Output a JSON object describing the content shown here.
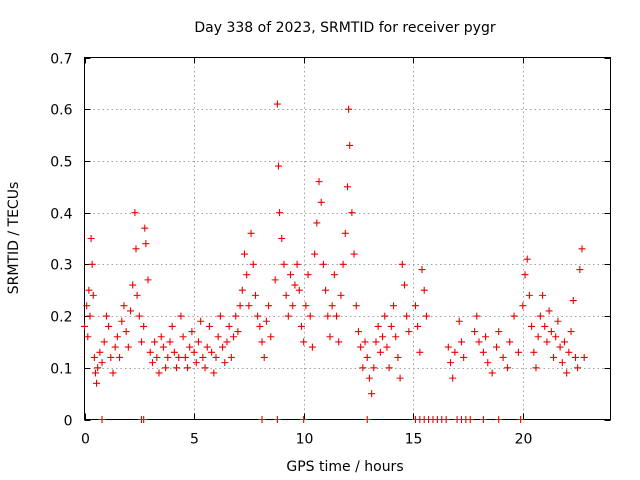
{
  "chart_data": {
    "type": "scatter",
    "title": "Day 338 of 2023, SRMTID for receiver pygr",
    "xlabel": "GPS time / hours",
    "ylabel": "SRMTID / TECUs",
    "xlim": [
      0,
      24
    ],
    "ylim": [
      0,
      0.7
    ],
    "xticks": [
      0,
      5,
      10,
      15,
      20
    ],
    "yticks": [
      0,
      0.1,
      0.2,
      0.3,
      0.4,
      0.5,
      0.6,
      0.7
    ],
    "xtick_labels": [
      "0",
      "5",
      "10",
      "15",
      "20"
    ],
    "ytick_labels": [
      "0",
      "0.1",
      "0.2",
      "0.3",
      "0.4",
      "0.5",
      "0.6",
      "0.7"
    ],
    "grid": true,
    "marker": "+",
    "color": "#ee0000",
    "series": [
      {
        "name": "SRMTID",
        "points": [
          [
            0.0,
            0.18
          ],
          [
            0.1,
            0.22
          ],
          [
            0.15,
            0.16
          ],
          [
            0.2,
            0.25
          ],
          [
            0.25,
            0.2
          ],
          [
            0.3,
            0.35
          ],
          [
            0.35,
            0.3
          ],
          [
            0.4,
            0.24
          ],
          [
            0.45,
            0.12
          ],
          [
            0.5,
            0.09
          ],
          [
            0.55,
            0.07
          ],
          [
            0.6,
            0.1
          ],
          [
            0.7,
            0.13
          ],
          [
            0.8,
            0.11
          ],
          [
            0.9,
            0.15
          ],
          [
            1.0,
            0.2
          ],
          [
            1.1,
            0.18
          ],
          [
            1.2,
            0.12
          ],
          [
            1.3,
            0.09
          ],
          [
            1.4,
            0.14
          ],
          [
            1.5,
            0.16
          ],
          [
            1.6,
            0.12
          ],
          [
            1.7,
            0.19
          ],
          [
            1.8,
            0.22
          ],
          [
            1.9,
            0.17
          ],
          [
            2.0,
            0.14
          ],
          [
            2.1,
            0.21
          ],
          [
            2.2,
            0.26
          ],
          [
            2.3,
            0.4
          ],
          [
            2.35,
            0.33
          ],
          [
            2.4,
            0.24
          ],
          [
            2.5,
            0.2
          ],
          [
            2.6,
            0.15
          ],
          [
            2.7,
            0.18
          ],
          [
            2.75,
            0.37
          ],
          [
            2.8,
            0.34
          ],
          [
            2.9,
            0.27
          ],
          [
            3.0,
            0.13
          ],
          [
            3.1,
            0.11
          ],
          [
            3.2,
            0.15
          ],
          [
            3.3,
            0.12
          ],
          [
            3.4,
            0.09
          ],
          [
            3.5,
            0.16
          ],
          [
            3.6,
            0.14
          ],
          [
            3.7,
            0.1
          ],
          [
            3.8,
            0.12
          ],
          [
            3.9,
            0.15
          ],
          [
            4.0,
            0.18
          ],
          [
            4.1,
            0.13
          ],
          [
            4.2,
            0.1
          ],
          [
            4.3,
            0.12
          ],
          [
            4.4,
            0.2
          ],
          [
            4.5,
            0.16
          ],
          [
            4.6,
            0.12
          ],
          [
            4.7,
            0.1
          ],
          [
            4.8,
            0.14
          ],
          [
            4.9,
            0.17
          ],
          [
            5.0,
            0.13
          ],
          [
            5.1,
            0.11
          ],
          [
            5.2,
            0.15
          ],
          [
            5.3,
            0.19
          ],
          [
            5.4,
            0.12
          ],
          [
            5.5,
            0.1
          ],
          [
            5.6,
            0.14
          ],
          [
            5.7,
            0.18
          ],
          [
            5.8,
            0.13
          ],
          [
            5.9,
            0.09
          ],
          [
            6.0,
            0.12
          ],
          [
            6.1,
            0.16
          ],
          [
            6.2,
            0.2
          ],
          [
            6.3,
            0.14
          ],
          [
            6.4,
            0.11
          ],
          [
            6.5,
            0.15
          ],
          [
            6.6,
            0.18
          ],
          [
            6.7,
            0.12
          ],
          [
            6.8,
            0.16
          ],
          [
            6.9,
            0.2
          ],
          [
            7.0,
            0.17
          ],
          [
            7.1,
            0.22
          ],
          [
            7.2,
            0.25
          ],
          [
            7.3,
            0.32
          ],
          [
            7.4,
            0.28
          ],
          [
            7.5,
            0.22
          ],
          [
            7.6,
            0.36
          ],
          [
            7.7,
            0.3
          ],
          [
            7.8,
            0.24
          ],
          [
            7.9,
            0.2
          ],
          [
            8.0,
            0.18
          ],
          [
            8.1,
            0.15
          ],
          [
            8.2,
            0.12
          ],
          [
            8.3,
            0.19
          ],
          [
            8.4,
            0.22
          ],
          [
            8.5,
            0.16
          ],
          [
            8.7,
            0.27
          ],
          [
            8.8,
            0.61
          ],
          [
            8.85,
            0.49
          ],
          [
            8.9,
            0.4
          ],
          [
            9.0,
            0.35
          ],
          [
            9.1,
            0.3
          ],
          [
            9.2,
            0.24
          ],
          [
            9.3,
            0.2
          ],
          [
            9.4,
            0.28
          ],
          [
            9.5,
            0.22
          ],
          [
            9.6,
            0.26
          ],
          [
            9.7,
            0.3
          ],
          [
            9.8,
            0.25
          ],
          [
            9.9,
            0.18
          ],
          [
            10.0,
            0.15
          ],
          [
            10.1,
            0.22
          ],
          [
            10.2,
            0.28
          ],
          [
            10.3,
            0.2
          ],
          [
            10.4,
            0.14
          ],
          [
            10.5,
            0.32
          ],
          [
            10.6,
            0.38
          ],
          [
            10.7,
            0.46
          ],
          [
            10.8,
            0.42
          ],
          [
            10.9,
            0.3
          ],
          [
            11.0,
            0.25
          ],
          [
            11.1,
            0.2
          ],
          [
            11.2,
            0.16
          ],
          [
            11.3,
            0.22
          ],
          [
            11.4,
            0.28
          ],
          [
            11.5,
            0.2
          ],
          [
            11.6,
            0.15
          ],
          [
            11.7,
            0.24
          ],
          [
            11.8,
            0.3
          ],
          [
            11.9,
            0.36
          ],
          [
            12.0,
            0.45
          ],
          [
            12.05,
            0.6
          ],
          [
            12.1,
            0.53
          ],
          [
            12.2,
            0.4
          ],
          [
            12.3,
            0.32
          ],
          [
            12.4,
            0.22
          ],
          [
            12.5,
            0.17
          ],
          [
            12.6,
            0.14
          ],
          [
            12.7,
            0.1
          ],
          [
            12.8,
            0.15
          ],
          [
            12.9,
            0.12
          ],
          [
            13.0,
            0.08
          ],
          [
            13.1,
            0.05
          ],
          [
            13.2,
            0.1
          ],
          [
            13.3,
            0.15
          ],
          [
            13.4,
            0.18
          ],
          [
            13.5,
            0.13
          ],
          [
            13.6,
            0.16
          ],
          [
            13.7,
            0.2
          ],
          [
            13.8,
            0.14
          ],
          [
            13.9,
            0.1
          ],
          [
            14.0,
            0.18
          ],
          [
            14.1,
            0.22
          ],
          [
            14.2,
            0.16
          ],
          [
            14.3,
            0.12
          ],
          [
            14.4,
            0.08
          ],
          [
            14.5,
            0.3
          ],
          [
            14.6,
            0.26
          ],
          [
            14.7,
            0.2
          ],
          [
            14.8,
            0.17
          ],
          [
            15.1,
            0.22
          ],
          [
            15.2,
            0.18
          ],
          [
            15.3,
            0.13
          ],
          [
            15.4,
            0.29
          ],
          [
            15.5,
            0.25
          ],
          [
            15.6,
            0.2
          ],
          [
            16.6,
            0.14
          ],
          [
            16.7,
            0.11
          ],
          [
            16.8,
            0.08
          ],
          [
            16.9,
            0.13
          ],
          [
            17.1,
            0.19
          ],
          [
            17.2,
            0.15
          ],
          [
            17.3,
            0.12
          ],
          [
            17.8,
            0.17
          ],
          [
            17.9,
            0.2
          ],
          [
            18.0,
            0.15
          ],
          [
            18.2,
            0.13
          ],
          [
            18.3,
            0.16
          ],
          [
            18.4,
            0.11
          ],
          [
            18.6,
            0.09
          ],
          [
            18.8,
            0.14
          ],
          [
            18.9,
            0.17
          ],
          [
            19.1,
            0.12
          ],
          [
            19.3,
            0.1
          ],
          [
            19.4,
            0.15
          ],
          [
            19.6,
            0.2
          ],
          [
            19.8,
            0.13
          ],
          [
            20.0,
            0.22
          ],
          [
            20.1,
            0.28
          ],
          [
            20.2,
            0.31
          ],
          [
            20.3,
            0.24
          ],
          [
            20.4,
            0.18
          ],
          [
            20.5,
            0.13
          ],
          [
            20.6,
            0.1
          ],
          [
            20.7,
            0.16
          ],
          [
            20.8,
            0.2
          ],
          [
            20.9,
            0.24
          ],
          [
            21.0,
            0.18
          ],
          [
            21.1,
            0.15
          ],
          [
            21.2,
            0.21
          ],
          [
            21.3,
            0.17
          ],
          [
            21.4,
            0.12
          ],
          [
            21.5,
            0.16
          ],
          [
            21.6,
            0.19
          ],
          [
            21.7,
            0.14
          ],
          [
            21.8,
            0.11
          ],
          [
            21.9,
            0.15
          ],
          [
            22.0,
            0.09
          ],
          [
            22.1,
            0.13
          ],
          [
            22.2,
            0.17
          ],
          [
            22.3,
            0.23
          ],
          [
            22.4,
            0.12
          ],
          [
            22.5,
            0.1
          ],
          [
            22.6,
            0.29
          ],
          [
            22.7,
            0.33
          ],
          [
            22.8,
            0.12
          ]
        ]
      }
    ],
    "zero_points_x": [
      0.8,
      2.6,
      2.7,
      8.1,
      8.8,
      10.0,
      12.9,
      15.1,
      15.3,
      15.5,
      15.7,
      15.9,
      16.1,
      16.3,
      16.5,
      17.0,
      17.2,
      17.4,
      17.6,
      18.2,
      18.9,
      19.9
    ]
  }
}
